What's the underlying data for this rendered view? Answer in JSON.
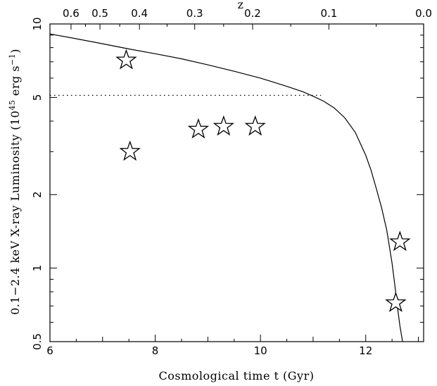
{
  "chart_data": {
    "type": "scatter",
    "xlabel": "Cosmological time t (Gyr)",
    "ylabel_parts": [
      "0.1−2.4 keV X-ray Luminosity (10",
      "45",
      " erg s",
      "−1",
      ")"
    ],
    "top_axis_label": "z",
    "xlim": [
      6,
      13.1
    ],
    "ylim": [
      0.5,
      10
    ],
    "y_scale": "log",
    "x_ticks": [
      6,
      8,
      10,
      12
    ],
    "x_tick_labels": [
      "6",
      "8",
      "10",
      "12"
    ],
    "y_ticks": [
      0.5,
      1,
      2,
      5,
      10
    ],
    "y_tick_labels": [
      "0.5",
      "1",
      "2",
      "5",
      "10"
    ],
    "z_ticks": [
      0.6,
      0.5,
      0.4,
      0.3,
      0.2,
      0.1,
      0.0
    ],
    "z_tick_labels": [
      "0.6",
      "0.5",
      "0.4",
      "0.3",
      "0.2",
      "0.1",
      "0.0"
    ],
    "z_tick_t": [
      6.4,
      6.95,
      7.7,
      8.75,
      9.85,
      11.3,
      13.1
    ],
    "points": [
      {
        "t": 7.45,
        "L": 7.1
      },
      {
        "t": 7.52,
        "L": 3.0
      },
      {
        "t": 8.82,
        "L": 3.7
      },
      {
        "t": 9.3,
        "L": 3.8
      },
      {
        "t": 9.9,
        "L": 3.8
      },
      {
        "t": 12.65,
        "L": 1.28
      },
      {
        "t": 12.57,
        "L": 0.72
      }
    ],
    "curve": {
      "t": [
        6.0,
        6.5,
        7.0,
        7.5,
        8.0,
        8.5,
        9.0,
        9.5,
        10.0,
        10.5,
        10.8,
        11.0,
        11.2,
        11.4,
        11.6,
        11.8,
        12.0,
        12.1,
        12.2,
        12.3,
        12.4,
        12.5,
        12.55,
        12.6,
        12.65,
        12.7
      ],
      "L": [
        9.1,
        8.7,
        8.3,
        7.9,
        7.55,
        7.2,
        6.8,
        6.4,
        6.0,
        5.55,
        5.28,
        5.06,
        4.83,
        4.53,
        4.13,
        3.6,
        2.9,
        2.52,
        2.12,
        1.77,
        1.43,
        1.05,
        0.86,
        0.7,
        0.58,
        0.5
      ]
    },
    "threshold": {
      "L": 5.1,
      "t_end": 11.15
    }
  }
}
